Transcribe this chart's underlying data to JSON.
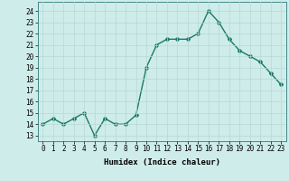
{
  "x": [
    0,
    1,
    2,
    3,
    4,
    5,
    6,
    7,
    8,
    9,
    10,
    11,
    12,
    13,
    14,
    15,
    16,
    17,
    18,
    19,
    20,
    21,
    22,
    23
  ],
  "y": [
    14.0,
    14.5,
    14.0,
    14.5,
    15.0,
    13.0,
    14.5,
    14.0,
    14.0,
    14.8,
    19.0,
    21.0,
    21.5,
    21.5,
    21.5,
    22.0,
    24.0,
    23.0,
    21.5,
    20.5,
    20.0,
    19.5,
    18.5,
    17.5
  ],
  "xlabel": "Humidex (Indice chaleur)",
  "ylabel": "",
  "xlim": [
    -0.5,
    23.5
  ],
  "ylim": [
    12.5,
    24.8
  ],
  "yticks": [
    13,
    14,
    15,
    16,
    17,
    18,
    19,
    20,
    21,
    22,
    23,
    24
  ],
  "xticks": [
    0,
    1,
    2,
    3,
    4,
    5,
    6,
    7,
    8,
    9,
    10,
    11,
    12,
    13,
    14,
    15,
    16,
    17,
    18,
    19,
    20,
    21,
    22,
    23
  ],
  "xtick_labels": [
    "0",
    "1",
    "2",
    "3",
    "4",
    "5",
    "6",
    "7",
    "8",
    "9",
    "10",
    "11",
    "12",
    "13",
    "14",
    "15",
    "16",
    "17",
    "18",
    "19",
    "20",
    "21",
    "22",
    "23"
  ],
  "line_color": "#1a7a6a",
  "marker": "D",
  "marker_size": 2.0,
  "line_width": 1.0,
  "bg_color": "#ceecea",
  "grid_color": "#b8d8d4",
  "axis_bg": "#ceecea",
  "label_fontsize": 6.5,
  "tick_fontsize": 5.5
}
